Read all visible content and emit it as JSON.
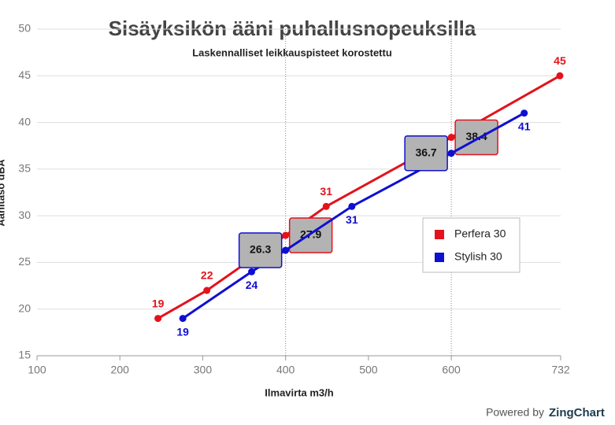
{
  "chart_data": {
    "type": "line",
    "title": "Sisäyksikön ääni puhallusnopeuksilla",
    "subtitle": "Laskennalliset leikkauspisteet korostettu",
    "x_label": "Ilmavirta m3/h",
    "y_label": "Äänitaso dBA",
    "credit": [
      "Powered by",
      "ZingChart"
    ],
    "xlim": [
      100,
      732
    ],
    "xticks": [
      100,
      200,
      300,
      400,
      500,
      600,
      732
    ],
    "ylim": [
      15,
      50
    ],
    "yticks": [
      15,
      20,
      25,
      30,
      35,
      40,
      45,
      50
    ],
    "grid": true,
    "legend": "right",
    "highlight_x": [
      400,
      600
    ],
    "series": [
      {
        "name": "Perfera 30",
        "color": "#e3121b",
        "x": [
          246,
          305,
          400,
          449,
          600,
          731
        ],
        "values": [
          19,
          22,
          27.9,
          31,
          38.4,
          45
        ]
      },
      {
        "name": "Stylish 30",
        "color": "#0f0fd2",
        "x": [
          276,
          359,
          400,
          480,
          600,
          688
        ],
        "values": [
          19,
          24,
          26.3,
          31,
          36.7,
          41
        ]
      }
    ]
  }
}
